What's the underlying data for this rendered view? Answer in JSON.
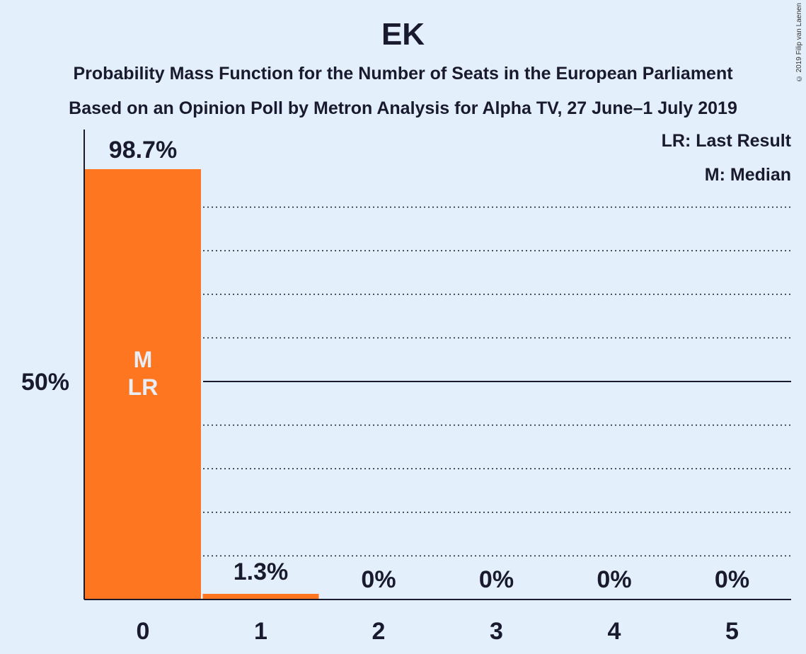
{
  "chart_data": {
    "type": "bar",
    "title": "EK",
    "subtitle_lines": [
      "Probability Mass Function for the Number of Seats in the European Parliament",
      "Based on an Opinion Poll by Metron Analysis for Alpha TV, 27 June–1 July 2019"
    ],
    "categories": [
      "0",
      "1",
      "2",
      "3",
      "4",
      "5"
    ],
    "values": [
      98.7,
      1.3,
      0,
      0,
      0,
      0
    ],
    "value_labels": [
      "98.7%",
      "1.3%",
      "0%",
      "0%",
      "0%",
      "0%"
    ],
    "ylim": [
      0,
      100
    ],
    "y_tick_label": "50%",
    "gridlines": [
      10,
      20,
      30,
      40,
      50,
      60,
      70,
      80,
      90
    ],
    "bar_markers": {
      "0": [
        "M",
        "LR"
      ]
    },
    "legend": [
      "LR: Last Result",
      "M: Median"
    ],
    "copyright": "© 2019 Filip van Laenen",
    "colors": {
      "bar": "#ff7620",
      "background": "#e3f0fc",
      "text": "#1a1a2e",
      "marker_text": "#e8eef8"
    }
  }
}
